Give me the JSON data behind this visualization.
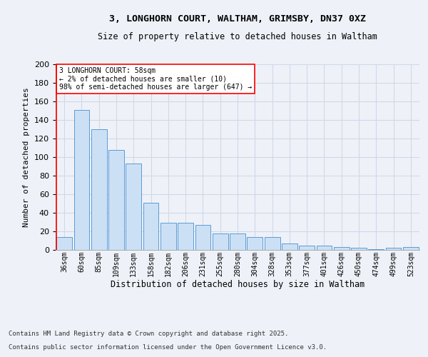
{
  "title": "3, LONGHORN COURT, WALTHAM, GRIMSBY, DN37 0XZ",
  "subtitle": "Size of property relative to detached houses in Waltham",
  "xlabel": "Distribution of detached houses by size in Waltham",
  "ylabel": "Number of detached properties",
  "bar_color": "#cce0f5",
  "bar_edge_color": "#5b9bd5",
  "categories": [
    "36sqm",
    "60sqm",
    "85sqm",
    "109sqm",
    "133sqm",
    "158sqm",
    "182sqm",
    "206sqm",
    "231sqm",
    "255sqm",
    "280sqm",
    "304sqm",
    "328sqm",
    "353sqm",
    "377sqm",
    "401sqm",
    "426sqm",
    "450sqm",
    "474sqm",
    "499sqm",
    "523sqm"
  ],
  "values": [
    14,
    151,
    130,
    108,
    93,
    51,
    29,
    29,
    27,
    18,
    18,
    14,
    14,
    7,
    5,
    5,
    3,
    2,
    1,
    2,
    3
  ],
  "ylim": [
    0,
    200
  ],
  "yticks": [
    0,
    20,
    40,
    60,
    80,
    100,
    120,
    140,
    160,
    180,
    200
  ],
  "annotation_title": "3 LONGHORN COURT: 58sqm",
  "annotation_line1": "← 2% of detached houses are smaller (10)",
  "annotation_line2": "98% of semi-detached houses are larger (647) →",
  "footer1": "Contains HM Land Registry data © Crown copyright and database right 2025.",
  "footer2": "Contains public sector information licensed under the Open Government Licence v3.0.",
  "background_color": "#eef2f8",
  "grid_color": "#d0d8e8"
}
